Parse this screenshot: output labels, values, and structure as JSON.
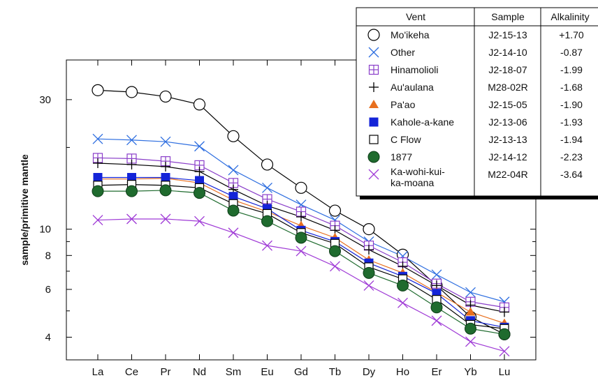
{
  "chart_data": {
    "type": "line",
    "ylabel": "sample/primitive mantle",
    "yscale": "log",
    "ylim": [
      3.3,
      42
    ],
    "yticks": [
      {
        "value": 4,
        "label": "4"
      },
      {
        "value": 6,
        "label": "6"
      },
      {
        "value": 8,
        "label": "8"
      },
      {
        "value": 10,
        "label": "10"
      },
      {
        "value": 30,
        "label": "30"
      }
    ],
    "categories": [
      "La",
      "Ce",
      "Pr",
      "Nd",
      "Sm",
      "Eu",
      "Gd",
      "Tb",
      "Dy",
      "Ho",
      "Er",
      "Yb",
      "Lu"
    ],
    "legend": {
      "position": "top-right",
      "headers": {
        "vent": "Vent",
        "sample": "Sample",
        "alkalinity": "Alkalinity"
      }
    },
    "series": [
      {
        "name": "Mo'ikeha",
        "sample": "J2-15-13",
        "alkalinity": "+1.70",
        "marker": "open-circle",
        "color": "#000000",
        "values": [
          32.5,
          32.0,
          30.8,
          28.8,
          22.0,
          17.3,
          14.2,
          11.7,
          10.0,
          8.05,
          6.2,
          4.75,
          4.1
        ]
      },
      {
        "name": "Other",
        "sample": "J2-14-10",
        "alkalinity": "-0.87",
        "marker": "x",
        "color": "#2f6fe0",
        "values": [
          21.5,
          21.3,
          21.0,
          20.2,
          16.5,
          14.2,
          12.3,
          10.8,
          9.0,
          7.95,
          6.8,
          5.85,
          5.4
        ]
      },
      {
        "name": "Hinamolioli",
        "sample": "J2-18-07",
        "alkalinity": "-1.99",
        "marker": "boxed-plus",
        "color": "#8a3ec9",
        "values": [
          18.3,
          18.2,
          17.8,
          17.2,
          14.8,
          12.9,
          11.6,
          10.3,
          8.7,
          7.55,
          6.3,
          5.4,
          5.15
        ]
      },
      {
        "name": "Au'aulana",
        "sample": "M28-02R",
        "alkalinity": "-1.68",
        "marker": "plus",
        "color": "#000000",
        "values": [
          17.5,
          17.3,
          17.0,
          16.3,
          14.0,
          12.2,
          11.1,
          9.9,
          8.4,
          7.3,
          6.2,
          5.25,
          4.95
        ]
      },
      {
        "name": "Pa'ao",
        "sample": "J2-15-05",
        "alkalinity": "-1.90",
        "marker": "triangle",
        "color": "#e8701f",
        "values": [
          15.3,
          15.3,
          15.4,
          14.8,
          12.8,
          11.6,
          10.3,
          9.3,
          7.7,
          6.9,
          5.85,
          4.95,
          4.5
        ]
      },
      {
        "name": "Kahole-a-kane",
        "sample": "J2-13-06",
        "alkalinity": "-1.93",
        "marker": "filled-square",
        "color": "#1424d8",
        "values": [
          15.5,
          15.5,
          15.5,
          15.1,
          13.2,
          11.9,
          9.9,
          9.0,
          7.5,
          6.7,
          5.8,
          4.6,
          4.35
        ]
      },
      {
        "name": "C Flow",
        "sample": "J2-13-13",
        "alkalinity": "-1.94",
        "marker": "open-square",
        "color": "#000000",
        "values": [
          14.5,
          14.6,
          14.5,
          14.2,
          12.4,
          11.4,
          9.7,
          8.85,
          7.25,
          6.55,
          5.5,
          4.45,
          4.3
        ]
      },
      {
        "name": "1877",
        "sample": "J2-14-12",
        "alkalinity": "-2.23",
        "marker": "filled-circle",
        "color": "#1f6b2e",
        "values": [
          13.8,
          13.8,
          13.9,
          13.6,
          11.7,
          10.7,
          9.3,
          8.3,
          6.9,
          6.2,
          5.15,
          4.3,
          4.1
        ]
      },
      {
        "name": "Ka-wohi-kui-ka-moana",
        "sample": "M22-04R",
        "alkalinity": "-3.64",
        "marker": "x",
        "color": "#9f3ad6",
        "values": [
          10.8,
          10.9,
          10.9,
          10.7,
          9.7,
          8.7,
          8.3,
          7.3,
          6.2,
          5.35,
          4.6,
          3.85,
          3.55
        ]
      }
    ]
  }
}
